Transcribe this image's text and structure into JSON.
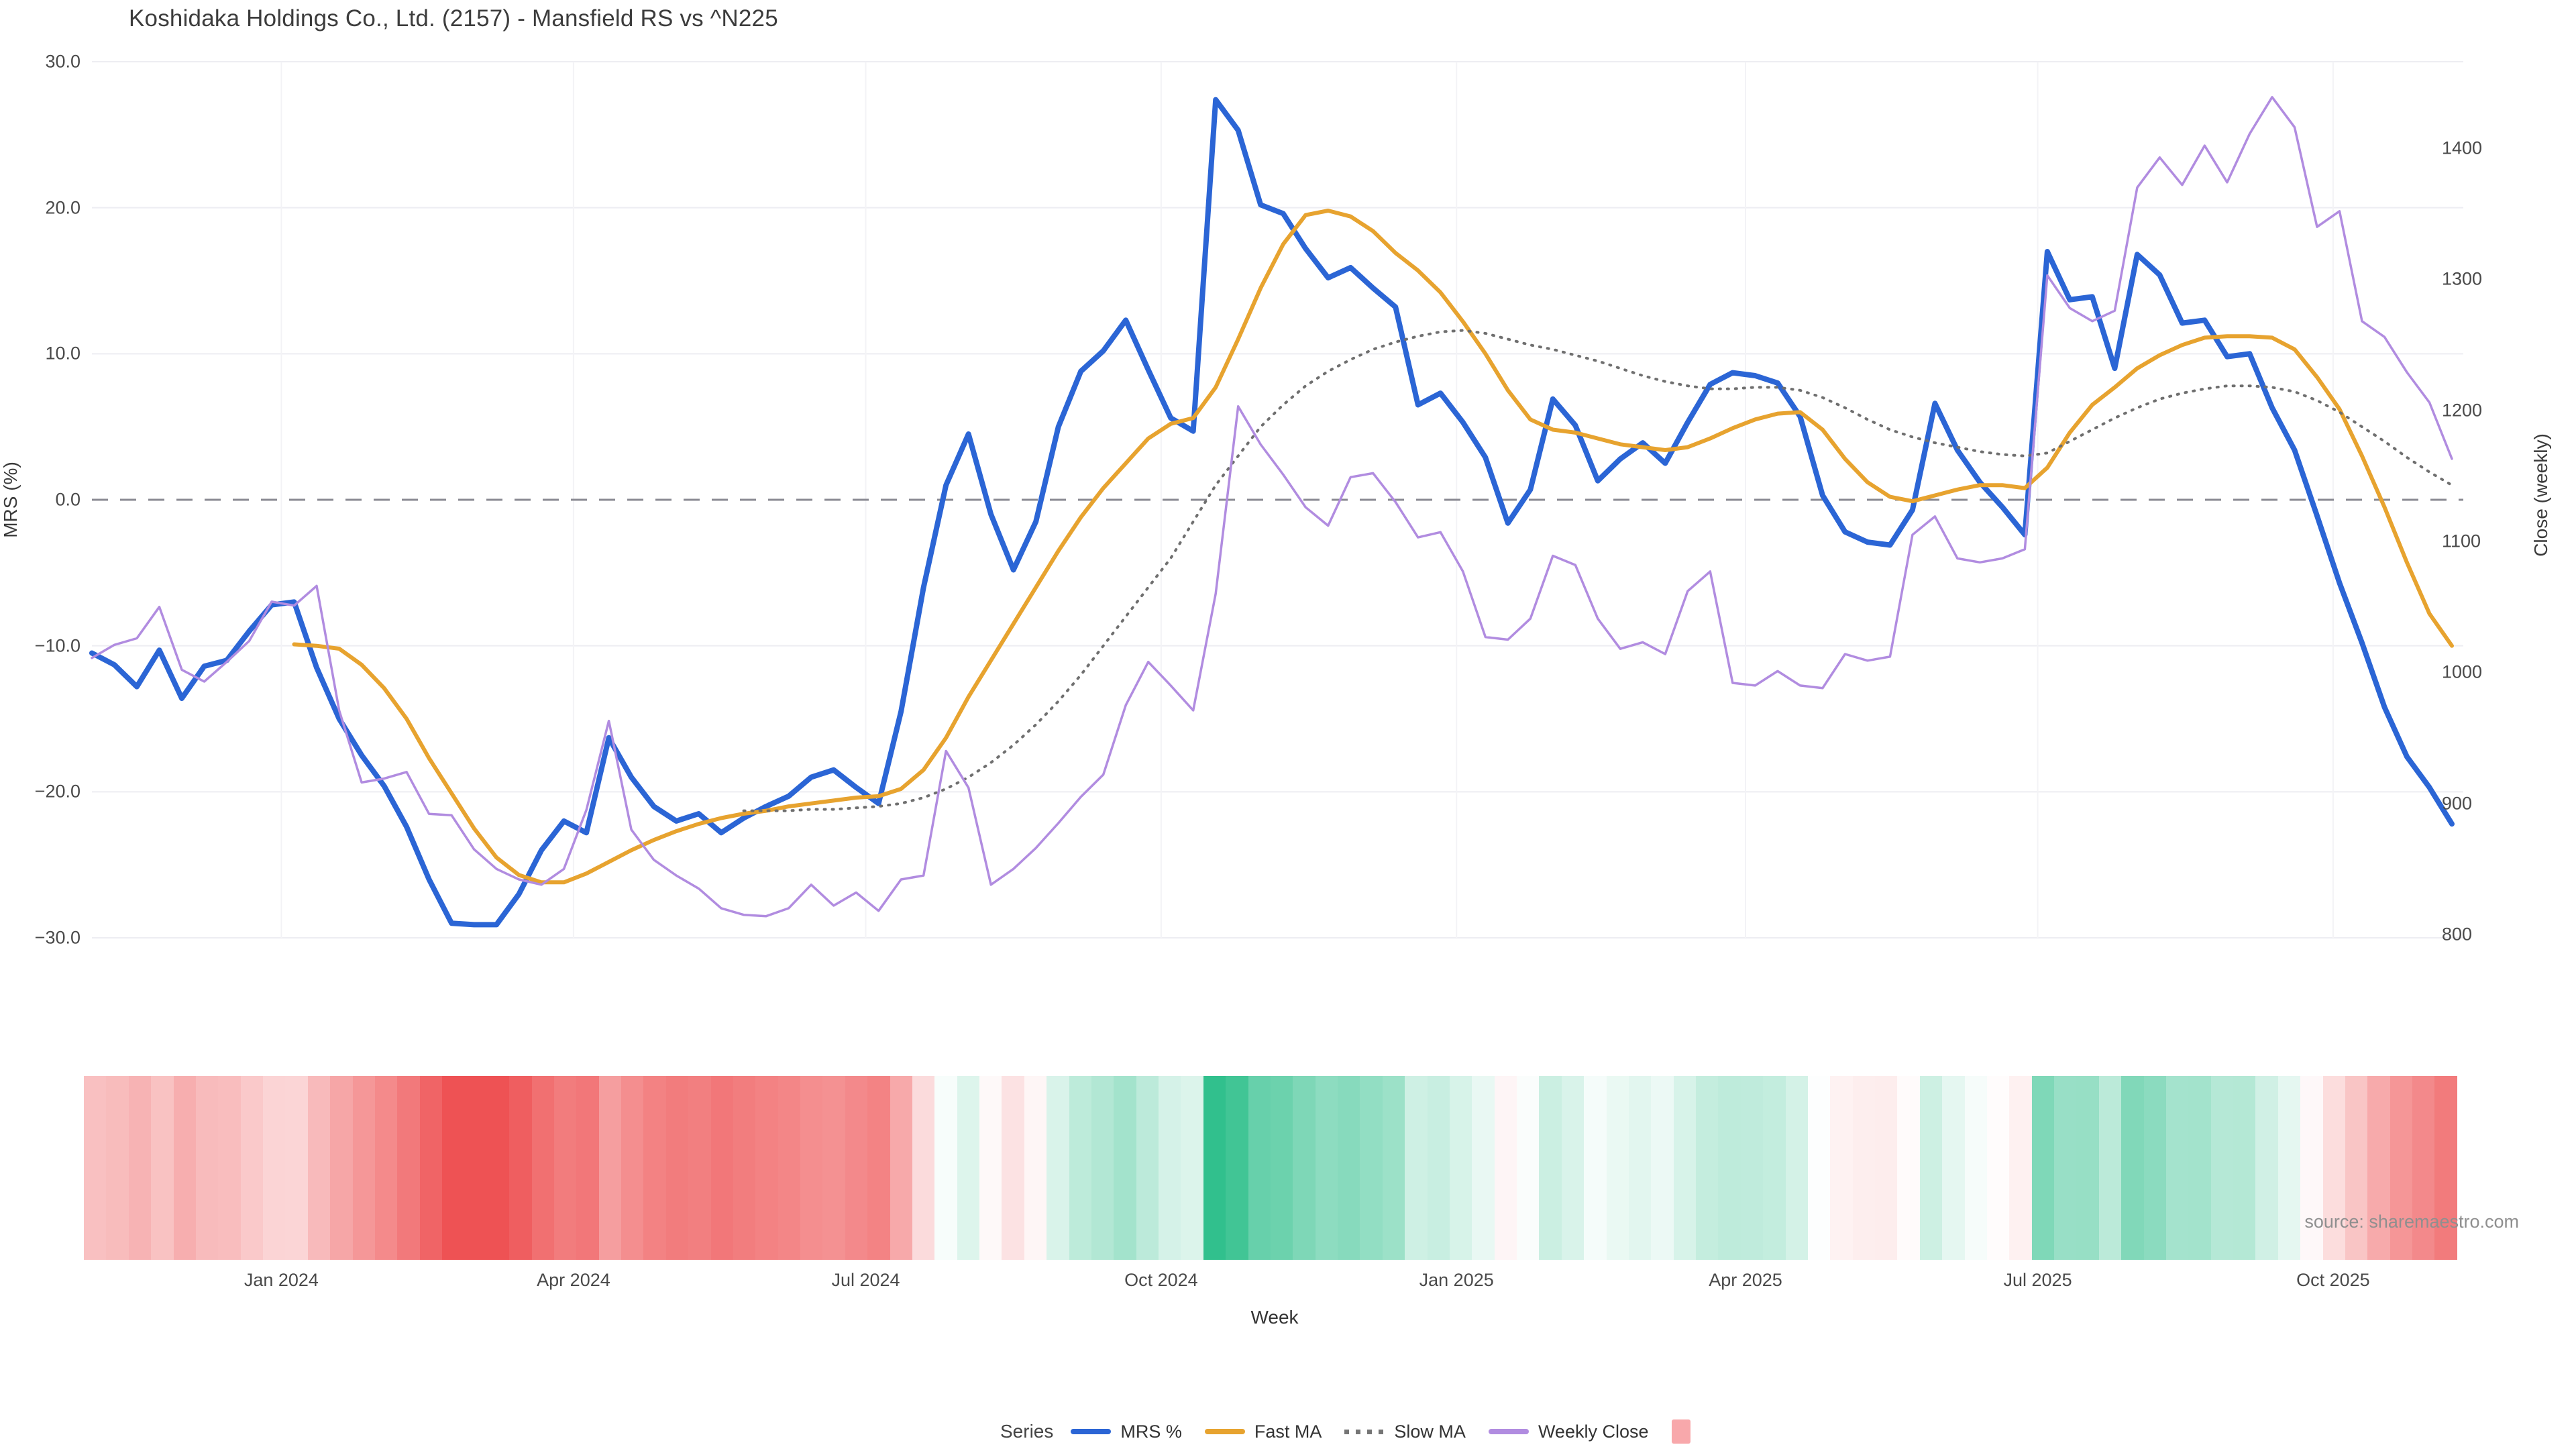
{
  "title": "Koshidaka Holdings Co., Ltd. (2157) - Mansfield RS vs ^N225",
  "source_note": "source: sharemaestro.com",
  "legend": {
    "title": "Series",
    "items": [
      {
        "label": "MRS %",
        "swatch": "line",
        "color": "#2b65d5"
      },
      {
        "label": "Fast MA",
        "swatch": "line",
        "color": "#e7a32f"
      },
      {
        "label": "Slow MA",
        "swatch": "dotted-line",
        "color": "#757575"
      },
      {
        "label": "Weekly Close",
        "swatch": "line",
        "color": "#b18ce0"
      },
      {
        "label": "",
        "swatch": "square",
        "color": "#f8a8ab"
      }
    ]
  },
  "chart_data": {
    "type": "line",
    "title": "Koshidaka Holdings Co., Ltd. (2157) - Mansfield RS vs ^N225",
    "xlabel": "Week",
    "x_unit": "weekly",
    "start_date": "2023-11-03",
    "end_date": "2025-11-07",
    "n_weeks": 106,
    "grid": true,
    "zero_line": {
      "value": 0.0,
      "style": "dashed",
      "color": "#8a8a92"
    },
    "left_axis": {
      "label": "MRS (%)",
      "max": 30,
      "min": -30,
      "ticks": [
        {
          "label": "30.0",
          "value": 30
        },
        {
          "label": "20.0",
          "value": 20
        },
        {
          "label": "10.0",
          "value": 10
        },
        {
          "label": "0.0",
          "value": 0
        },
        {
          "label": "−10.0",
          "value": -10
        },
        {
          "label": "−20.0",
          "value": -20
        },
        {
          "label": "−30.0",
          "value": -30
        }
      ]
    },
    "right_axis": {
      "label": "Close (weekly)",
      "max": 1400,
      "min": 800,
      "ticks": [
        {
          "label": "1400",
          "value": 1400
        },
        {
          "label": "1300",
          "value": 1300
        },
        {
          "label": "1200",
          "value": 1200
        },
        {
          "label": "1100",
          "value": 1100
        },
        {
          "label": "1000",
          "value": 1000
        },
        {
          "label": "900",
          "value": 900
        },
        {
          "label": "800",
          "value": 800
        }
      ]
    },
    "x_ticks": [
      {
        "label": "Jan 2024",
        "date": "2024-01-01"
      },
      {
        "label": "Apr 2024",
        "date": "2024-04-01"
      },
      {
        "label": "Jul 2024",
        "date": "2024-07-01"
      },
      {
        "label": "Oct 2024",
        "date": "2024-10-01"
      },
      {
        "label": "Jan 2025",
        "date": "2025-01-01"
      },
      {
        "label": "Apr 2025",
        "date": "2025-04-01"
      },
      {
        "label": "Jul 2025",
        "date": "2025-07-01"
      },
      {
        "label": "Oct 2025",
        "date": "2025-10-01"
      }
    ],
    "series": [
      {
        "name": "MRS %",
        "axis": "left",
        "color": "#2b65d5",
        "width": 8,
        "dash": "solid",
        "start_week": 0,
        "values": [
          -10.5,
          -11.3,
          -12.8,
          -10.3,
          -13.6,
          -11.4,
          -11.0,
          -9.0,
          -7.2,
          -7.0,
          -11.5,
          -15.0,
          -17.5,
          -19.6,
          -22.4,
          -26.0,
          -29.0,
          -29.1,
          -29.1,
          -27.0,
          -24.0,
          -22.0,
          -22.8,
          -16.3,
          -19.0,
          -21.0,
          -22.0,
          -21.5,
          -22.8,
          -21.8,
          -21.0,
          -20.3,
          -19.0,
          -18.5,
          -19.7,
          -20.8,
          -14.5,
          -6.0,
          1.0,
          4.5,
          -1.0,
          -4.8,
          -1.5,
          5.0,
          8.8,
          10.2,
          12.3,
          8.9,
          5.6,
          4.7,
          27.4,
          25.3,
          20.2,
          19.6,
          17.2,
          15.2,
          15.9,
          14.5,
          13.2,
          6.5,
          7.3,
          5.3,
          2.9,
          -1.6,
          0.7,
          6.9,
          5.1,
          1.3,
          2.8,
          3.9,
          2.5,
          5.3,
          7.9,
          8.7,
          8.5,
          8.0,
          5.7,
          0.3,
          -2.2,
          -2.9,
          -3.1,
          -0.7,
          6.6,
          3.4,
          1.2,
          -0.5,
          -2.4,
          17.0,
          13.7,
          13.9,
          9.0,
          16.8,
          15.4,
          12.1,
          12.3,
          9.8,
          10.0,
          6.3,
          3.4,
          -1.1,
          -5.7,
          -9.8,
          -14.2,
          -17.6,
          -19.7,
          -22.2
        ]
      },
      {
        "name": "Fast MA",
        "axis": "left",
        "color": "#e7a32f",
        "width": 6,
        "dash": "solid",
        "start_week": 9,
        "values": [
          -9.9,
          -10.0,
          -10.2,
          -11.3,
          -12.9,
          -15.0,
          -17.7,
          -20.1,
          -22.5,
          -24.5,
          -25.7,
          -26.2,
          -26.2,
          -25.6,
          -24.8,
          -24.0,
          -23.3,
          -22.7,
          -22.2,
          -21.8,
          -21.5,
          -21.3,
          -21.0,
          -20.8,
          -20.6,
          -20.4,
          -20.3,
          -19.8,
          -18.5,
          -16.3,
          -13.5,
          -11.0,
          -8.5,
          -6.0,
          -3.5,
          -1.2,
          0.8,
          2.5,
          4.2,
          5.2,
          5.6,
          7.7,
          11.0,
          14.5,
          17.5,
          19.5,
          19.8,
          19.4,
          18.4,
          16.9,
          15.7,
          14.2,
          12.2,
          10.0,
          7.5,
          5.5,
          4.8,
          4.6,
          4.2,
          3.8,
          3.6,
          3.4,
          3.6,
          4.2,
          4.9,
          5.5,
          5.9,
          6.0,
          4.8,
          2.8,
          1.2,
          0.2,
          -0.1,
          0.3,
          0.7,
          1.0,
          1.0,
          0.8,
          2.2,
          4.6,
          6.5,
          7.7,
          9.0,
          9.9,
          10.6,
          11.1,
          11.2,
          11.2,
          11.1,
          10.3,
          8.4,
          6.2,
          3.0,
          -0.5,
          -4.3,
          -7.8,
          -10.0
        ]
      },
      {
        "name": "Slow MA",
        "axis": "left",
        "color": "#6f6f6f",
        "width": 4,
        "dash": "dotted",
        "start_week": 29,
        "values": [
          -21.3,
          -21.3,
          -21.3,
          -21.2,
          -21.2,
          -21.1,
          -21.0,
          -20.8,
          -20.4,
          -19.8,
          -19.0,
          -18.0,
          -16.8,
          -15.4,
          -13.8,
          -12.0,
          -10.0,
          -8.0,
          -6.0,
          -4.0,
          -1.5,
          1.0,
          3.0,
          5.0,
          6.5,
          7.8,
          8.8,
          9.6,
          10.3,
          10.8,
          11.2,
          11.5,
          11.6,
          11.4,
          11.0,
          10.6,
          10.3,
          9.9,
          9.5,
          9.0,
          8.5,
          8.1,
          7.8,
          7.6,
          7.6,
          7.7,
          7.7,
          7.5,
          7.0,
          6.3,
          5.5,
          4.8,
          4.3,
          3.9,
          3.6,
          3.3,
          3.1,
          3.0,
          3.2,
          4.0,
          4.8,
          5.6,
          6.3,
          6.9,
          7.3,
          7.6,
          7.8,
          7.8,
          7.7,
          7.4,
          6.8,
          6.0,
          5.0,
          4.0,
          2.9,
          1.9,
          1.0
        ]
      },
      {
        "name": "Weekly Close",
        "axis": "right",
        "color": "#b18ce0",
        "width": 3.5,
        "dash": "solid",
        "start_week": 0,
        "values": [
          1011,
          1021,
          1026,
          1050,
          1002,
          993,
          1008,
          1024,
          1054,
          1051,
          1066,
          971,
          916,
          919,
          924,
          892,
          891,
          865,
          850,
          842,
          838,
          850,
          895,
          963,
          880,
          857,
          845,
          835,
          820,
          815,
          814,
          820,
          838,
          822,
          832,
          818,
          842,
          845,
          940,
          912,
          838,
          850,
          866,
          885,
          905,
          922,
          975,
          1008,
          990,
          971,
          1060,
          1203,
          1174,
          1151,
          1126,
          1112,
          1149,
          1152,
          1130,
          1103,
          1107,
          1077,
          1027,
          1025,
          1041,
          1089,
          1082,
          1041,
          1018,
          1023,
          1014,
          1062,
          1077,
          992,
          990,
          1001,
          990,
          988,
          1014,
          1009,
          1012,
          1105,
          1119,
          1087,
          1084,
          1087,
          1094,
          1303,
          1278,
          1268,
          1276,
          1370,
          1393,
          1372,
          1402,
          1374,
          1411,
          1439,
          1416,
          1340,
          1352,
          1268,
          1256,
          1229,
          1206,
          1163
        ]
      }
    ],
    "heatmap": {
      "source_series": "MRS %",
      "scale_abs_max": 29,
      "negative_color": "#ee5254",
      "positive_color": "#25bc86",
      "neutral_color": "#ffffff"
    }
  }
}
